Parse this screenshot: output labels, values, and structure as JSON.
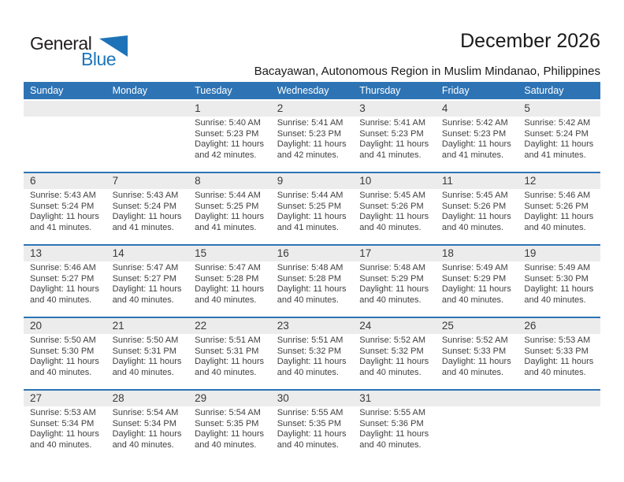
{
  "logo": {
    "line1": "General",
    "line2": "Blue",
    "dark_color": "#231F20",
    "blue_color": "#1C75BC",
    "triangle_color": "#1E73B8",
    "triangle_icon": "flag-triangle-icon"
  },
  "header": {
    "title": "December 2026",
    "subtitle": "Bacayawan, Autonomous Region in Muslim Mindanao, Philippines"
  },
  "colors": {
    "header_bar": "#2E74B5",
    "week_divider": "#2E74B5",
    "day_strip": "#ECECEC",
    "detail_text": "#3F3F3F"
  },
  "calendar": {
    "weekdays": [
      "Sunday",
      "Monday",
      "Tuesday",
      "Wednesday",
      "Thursday",
      "Friday",
      "Saturday"
    ],
    "weeks": [
      [
        null,
        null,
        {
          "day": "1",
          "lines": [
            "Sunrise: 5:40 AM",
            "Sunset: 5:23 PM",
            "Daylight: 11 hours",
            "and 42 minutes."
          ]
        },
        {
          "day": "2",
          "lines": [
            "Sunrise: 5:41 AM",
            "Sunset: 5:23 PM",
            "Daylight: 11 hours",
            "and 42 minutes."
          ]
        },
        {
          "day": "3",
          "lines": [
            "Sunrise: 5:41 AM",
            "Sunset: 5:23 PM",
            "Daylight: 11 hours",
            "and 41 minutes."
          ]
        },
        {
          "day": "4",
          "lines": [
            "Sunrise: 5:42 AM",
            "Sunset: 5:23 PM",
            "Daylight: 11 hours",
            "and 41 minutes."
          ]
        },
        {
          "day": "5",
          "lines": [
            "Sunrise: 5:42 AM",
            "Sunset: 5:24 PM",
            "Daylight: 11 hours",
            "and 41 minutes."
          ]
        }
      ],
      [
        {
          "day": "6",
          "lines": [
            "Sunrise: 5:43 AM",
            "Sunset: 5:24 PM",
            "Daylight: 11 hours",
            "and 41 minutes."
          ]
        },
        {
          "day": "7",
          "lines": [
            "Sunrise: 5:43 AM",
            "Sunset: 5:24 PM",
            "Daylight: 11 hours",
            "and 41 minutes."
          ]
        },
        {
          "day": "8",
          "lines": [
            "Sunrise: 5:44 AM",
            "Sunset: 5:25 PM",
            "Daylight: 11 hours",
            "and 41 minutes."
          ]
        },
        {
          "day": "9",
          "lines": [
            "Sunrise: 5:44 AM",
            "Sunset: 5:25 PM",
            "Daylight: 11 hours",
            "and 41 minutes."
          ]
        },
        {
          "day": "10",
          "lines": [
            "Sunrise: 5:45 AM",
            "Sunset: 5:26 PM",
            "Daylight: 11 hours",
            "and 40 minutes."
          ]
        },
        {
          "day": "11",
          "lines": [
            "Sunrise: 5:45 AM",
            "Sunset: 5:26 PM",
            "Daylight: 11 hours",
            "and 40 minutes."
          ]
        },
        {
          "day": "12",
          "lines": [
            "Sunrise: 5:46 AM",
            "Sunset: 5:26 PM",
            "Daylight: 11 hours",
            "and 40 minutes."
          ]
        }
      ],
      [
        {
          "day": "13",
          "lines": [
            "Sunrise: 5:46 AM",
            "Sunset: 5:27 PM",
            "Daylight: 11 hours",
            "and 40 minutes."
          ]
        },
        {
          "day": "14",
          "lines": [
            "Sunrise: 5:47 AM",
            "Sunset: 5:27 PM",
            "Daylight: 11 hours",
            "and 40 minutes."
          ]
        },
        {
          "day": "15",
          "lines": [
            "Sunrise: 5:47 AM",
            "Sunset: 5:28 PM",
            "Daylight: 11 hours",
            "and 40 minutes."
          ]
        },
        {
          "day": "16",
          "lines": [
            "Sunrise: 5:48 AM",
            "Sunset: 5:28 PM",
            "Daylight: 11 hours",
            "and 40 minutes."
          ]
        },
        {
          "day": "17",
          "lines": [
            "Sunrise: 5:48 AM",
            "Sunset: 5:29 PM",
            "Daylight: 11 hours",
            "and 40 minutes."
          ]
        },
        {
          "day": "18",
          "lines": [
            "Sunrise: 5:49 AM",
            "Sunset: 5:29 PM",
            "Daylight: 11 hours",
            "and 40 minutes."
          ]
        },
        {
          "day": "19",
          "lines": [
            "Sunrise: 5:49 AM",
            "Sunset: 5:30 PM",
            "Daylight: 11 hours",
            "and 40 minutes."
          ]
        }
      ],
      [
        {
          "day": "20",
          "lines": [
            "Sunrise: 5:50 AM",
            "Sunset: 5:30 PM",
            "Daylight: 11 hours",
            "and 40 minutes."
          ]
        },
        {
          "day": "21",
          "lines": [
            "Sunrise: 5:50 AM",
            "Sunset: 5:31 PM",
            "Daylight: 11 hours",
            "and 40 minutes."
          ]
        },
        {
          "day": "22",
          "lines": [
            "Sunrise: 5:51 AM",
            "Sunset: 5:31 PM",
            "Daylight: 11 hours",
            "and 40 minutes."
          ]
        },
        {
          "day": "23",
          "lines": [
            "Sunrise: 5:51 AM",
            "Sunset: 5:32 PM",
            "Daylight: 11 hours",
            "and 40 minutes."
          ]
        },
        {
          "day": "24",
          "lines": [
            "Sunrise: 5:52 AM",
            "Sunset: 5:32 PM",
            "Daylight: 11 hours",
            "and 40 minutes."
          ]
        },
        {
          "day": "25",
          "lines": [
            "Sunrise: 5:52 AM",
            "Sunset: 5:33 PM",
            "Daylight: 11 hours",
            "and 40 minutes."
          ]
        },
        {
          "day": "26",
          "lines": [
            "Sunrise: 5:53 AM",
            "Sunset: 5:33 PM",
            "Daylight: 11 hours",
            "and 40 minutes."
          ]
        }
      ],
      [
        {
          "day": "27",
          "lines": [
            "Sunrise: 5:53 AM",
            "Sunset: 5:34 PM",
            "Daylight: 11 hours",
            "and 40 minutes."
          ]
        },
        {
          "day": "28",
          "lines": [
            "Sunrise: 5:54 AM",
            "Sunset: 5:34 PM",
            "Daylight: 11 hours",
            "and 40 minutes."
          ]
        },
        {
          "day": "29",
          "lines": [
            "Sunrise: 5:54 AM",
            "Sunset: 5:35 PM",
            "Daylight: 11 hours",
            "and 40 minutes."
          ]
        },
        {
          "day": "30",
          "lines": [
            "Sunrise: 5:55 AM",
            "Sunset: 5:35 PM",
            "Daylight: 11 hours",
            "and 40 minutes."
          ]
        },
        {
          "day": "31",
          "lines": [
            "Sunrise: 5:55 AM",
            "Sunset: 5:36 PM",
            "Daylight: 11 hours",
            "and 40 minutes."
          ]
        },
        null,
        null
      ]
    ]
  }
}
